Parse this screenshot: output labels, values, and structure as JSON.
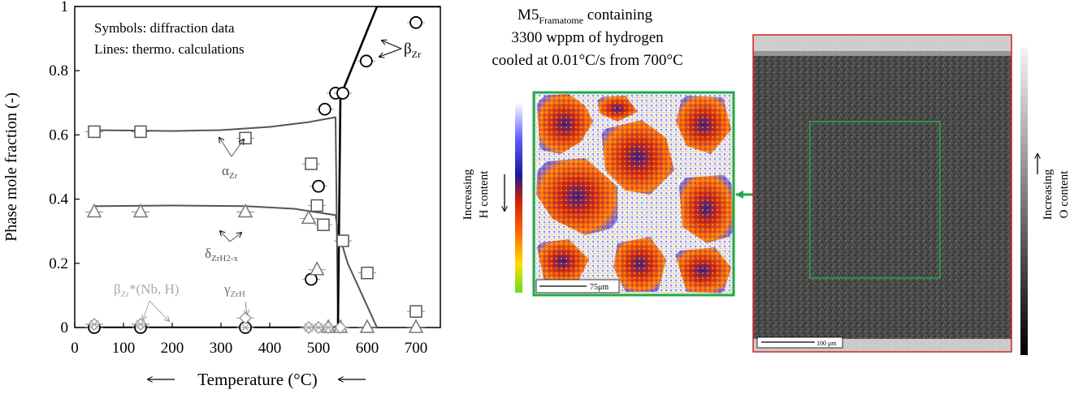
{
  "chart_data": {
    "type": "scatter",
    "xlabel": "Temperature (°C)",
    "ylabel": "Phase mole fraction (-)",
    "xlim": [
      0,
      750
    ],
    "ylim": [
      0,
      1
    ],
    "x_ticks": [
      0,
      100,
      200,
      300,
      400,
      500,
      600,
      700
    ],
    "y_ticks": [
      0,
      0.2,
      0.4,
      0.6,
      0.8,
      1
    ],
    "y_tick_labels": [
      "0",
      "0.2",
      "0.4",
      "0.6",
      "0.8",
      "1"
    ],
    "grid": false,
    "note_line1": "Symbols: diffraction data",
    "note_line2": "Lines: thermo. calculations",
    "labels": {
      "alpha_base": "α",
      "alpha_sub": "Zr",
      "beta_base": "β",
      "beta_sub": "Zr",
      "delta_base": "δ",
      "delta_sub": "ZrH2-x",
      "gamma_base": "γ",
      "gamma_sub": "ZrH",
      "bstar_base": "β",
      "bstar_sub": "Zr",
      "bstar_rest": "*(Nb, H)"
    },
    "series": [
      {
        "name": "αZr",
        "marker": "square",
        "points": [
          [
            40,
            0.61
          ],
          [
            135,
            0.61
          ],
          [
            350,
            0.59
          ],
          [
            485,
            0.51
          ],
          [
            497,
            0.38
          ],
          [
            510,
            0.32
          ],
          [
            550,
            0.27
          ],
          [
            600,
            0.17
          ],
          [
            700,
            0.05
          ]
        ]
      },
      {
        "name": "βZr",
        "marker": "circle",
        "points": [
          [
            40,
            0.0
          ],
          [
            135,
            0.0
          ],
          [
            350,
            0.0
          ],
          [
            485,
            0.15
          ],
          [
            500,
            0.44
          ],
          [
            513,
            0.68
          ],
          [
            535,
            0.73
          ],
          [
            550,
            0.73
          ],
          [
            598,
            0.83
          ],
          [
            700,
            0.95
          ]
        ]
      },
      {
        "name": "δZrH2-x",
        "marker": "triangle",
        "points": [
          [
            40,
            0.36
          ],
          [
            135,
            0.36
          ],
          [
            350,
            0.36
          ],
          [
            480,
            0.34
          ],
          [
            497,
            0.18
          ],
          [
            520,
            0.0
          ],
          [
            545,
            0.0
          ],
          [
            600,
            0.0
          ],
          [
            700,
            0.0
          ]
        ]
      },
      {
        "name": "γZrH",
        "marker": "diamond",
        "points": [
          [
            40,
            0.01
          ],
          [
            135,
            0.01
          ],
          [
            350,
            0.03
          ],
          [
            480,
            0.0
          ],
          [
            500,
            0.0
          ],
          [
            520,
            0.0
          ],
          [
            545,
            0.0
          ]
        ]
      },
      {
        "name": "βZr*(Nb, H)",
        "marker": "cross",
        "points": [
          [
            40,
            0.01
          ],
          [
            135,
            0.01
          ],
          [
            350,
            0.0
          ],
          [
            480,
            0.0
          ],
          [
            500,
            0.0
          ],
          [
            520,
            0.0
          ]
        ]
      }
    ],
    "calc_lines": [
      {
        "name": "αZr",
        "points": [
          [
            40,
            0.615
          ],
          [
            200,
            0.612
          ],
          [
            300,
            0.615
          ],
          [
            400,
            0.625
          ],
          [
            480,
            0.64
          ],
          [
            535,
            0.655
          ],
          [
            540,
            0.0
          ]
        ]
      },
      {
        "name": "δZrH2-x",
        "points": [
          [
            40,
            0.378
          ],
          [
            200,
            0.38
          ],
          [
            350,
            0.378
          ],
          [
            450,
            0.37
          ],
          [
            535,
            0.35
          ],
          [
            540,
            0.3
          ],
          [
            560,
            0.2
          ],
          [
            590,
            0.1
          ],
          [
            620,
            0.0
          ]
        ]
      },
      {
        "name": "βZr",
        "points": [
          [
            40,
            0.0
          ],
          [
            530,
            0.0
          ],
          [
            540,
            0.005
          ],
          [
            545,
            0.72
          ],
          [
            620,
            1.0
          ],
          [
            750,
            1.0
          ]
        ]
      }
    ]
  },
  "map": {
    "title_base": "M5",
    "title_sub": "Framatome",
    "title_rest": " containing",
    "title_line2": "3300 wppm of hydrogen",
    "title_line3": "cooled at 0.01°C/s from 700°C",
    "h_label_line1": "Increasing",
    "h_label_line2": "H content",
    "o_label_line1": "Increasing",
    "o_label_line2": "O content",
    "scale_h": "75μm",
    "scale_o": "100 μm"
  },
  "colors": {
    "h_map_frame": "#22aa44",
    "o_map_frame": "#d62020",
    "zoom_box": "#22aa44",
    "arrow": "#22aa44"
  }
}
